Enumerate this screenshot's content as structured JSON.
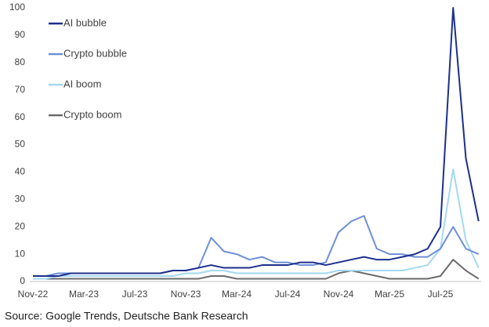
{
  "chart_data": {
    "type": "line",
    "categories": [
      "Nov-22",
      null,
      null,
      null,
      "Mar-23",
      null,
      null,
      null,
      "Jul-23",
      null,
      null,
      null,
      "Nov-23",
      null,
      null,
      null,
      "Mar-24",
      null,
      null,
      null,
      "Jul-24",
      null,
      null,
      null,
      "Nov-24",
      null,
      null,
      null,
      "Mar-25",
      null,
      null,
      null,
      "Jul-25",
      null,
      null,
      null
    ],
    "series": [
      {
        "name": "AI bubble",
        "color": "#1c2f8c",
        "values": [
          2,
          2,
          2,
          3,
          3,
          3,
          3,
          3,
          3,
          3,
          3,
          4,
          4,
          5,
          6,
          5,
          5,
          5,
          6,
          6,
          6,
          7,
          7,
          6,
          7,
          8,
          9,
          8,
          8,
          9,
          10,
          12,
          20,
          100,
          45,
          22
        ]
      },
      {
        "name": "Crypto bubble",
        "color": "#6e8fd8",
        "values": [
          2,
          2,
          3,
          3,
          3,
          3,
          3,
          3,
          3,
          3,
          3,
          4,
          4,
          5,
          16,
          11,
          10,
          8,
          9,
          7,
          7,
          6,
          6,
          7,
          18,
          22,
          24,
          12,
          10,
          10,
          9,
          9,
          12,
          20,
          12,
          10
        ]
      },
      {
        "name": "AI boom",
        "color": "#a3d9f2",
        "values": [
          1,
          1,
          2,
          2,
          2,
          2,
          2,
          2,
          2,
          2,
          2,
          2,
          3,
          3,
          4,
          4,
          3,
          3,
          3,
          3,
          3,
          3,
          3,
          3,
          4,
          4,
          4,
          4,
          4,
          4,
          5,
          6,
          12,
          41,
          15,
          5
        ]
      },
      {
        "name": "Crypto boom",
        "color": "#6b6b6b",
        "values": [
          1,
          1,
          1,
          1,
          1,
          1,
          1,
          1,
          1,
          1,
          1,
          1,
          1,
          1,
          2,
          2,
          1,
          1,
          1,
          1,
          1,
          1,
          1,
          1,
          3,
          4,
          3,
          2,
          1,
          1,
          1,
          1,
          2,
          8,
          4,
          1
        ]
      }
    ],
    "ylim": [
      0,
      100
    ],
    "yticks": [
      0,
      10,
      20,
      30,
      40,
      50,
      60,
      70,
      80,
      90,
      100
    ],
    "grid": false,
    "legend": "upper-left",
    "source": "Source: Google Trends, Deutsche Bank Research"
  }
}
